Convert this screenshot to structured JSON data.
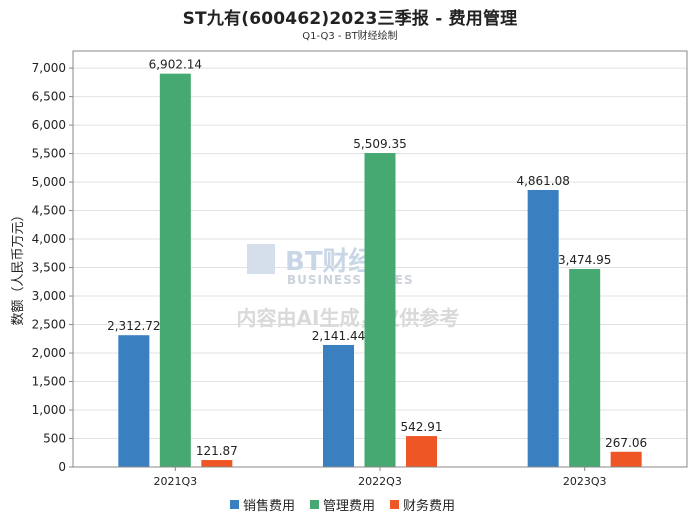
{
  "title": "ST九有(600462)2023三季报 - 费用管理",
  "subtitle": "Q1-Q3 - BT财经绘制",
  "watermark": {
    "brand": "BT财经",
    "brand_en": "BUSINESS TIMES",
    "notice": "内容由AI生成，仅供参考"
  },
  "colors": {
    "销售费用": "#3a7fbf",
    "管理费用": "#46a971",
    "财务费用": "#ee5626",
    "grid": "#e2e2e2",
    "axis": "#888888"
  },
  "chart_data": {
    "type": "bar",
    "title": "ST九有(600462)2023三季报 - 费用管理",
    "subtitle": "Q1-Q3 - BT财经绘制",
    "xlabel": "",
    "ylabel": "数额（人民币万元）",
    "categories": [
      "2021Q3",
      "2022Q3",
      "2023Q3"
    ],
    "series": [
      {
        "name": "销售费用",
        "values": [
          2312.72,
          2141.44,
          4861.08
        ]
      },
      {
        "name": "管理费用",
        "values": [
          6902.14,
          5509.35,
          3474.95
        ]
      },
      {
        "name": "财务费用",
        "values": [
          121.87,
          542.91,
          267.06
        ]
      }
    ],
    "data_labels": [
      [
        "2,312.72",
        "2,141.44",
        "4,861.08"
      ],
      [
        "6,902.14",
        "5,509.35",
        "3,474.95"
      ],
      [
        "121.87",
        "542.91",
        "267.06"
      ]
    ],
    "ylim": [
      0,
      7300
    ],
    "yticks": [
      0,
      500,
      1000,
      1500,
      2000,
      2500,
      3000,
      3500,
      4000,
      4500,
      5000,
      5500,
      6000,
      6500,
      7000
    ],
    "ytick_labels": [
      "0",
      "500",
      "1,000",
      "1,500",
      "2,000",
      "2,500",
      "3,000",
      "3,500",
      "4,000",
      "4,500",
      "5,000",
      "5,500",
      "6,000",
      "6,500",
      "7,000"
    ],
    "grid": true,
    "legend": "bottom"
  }
}
